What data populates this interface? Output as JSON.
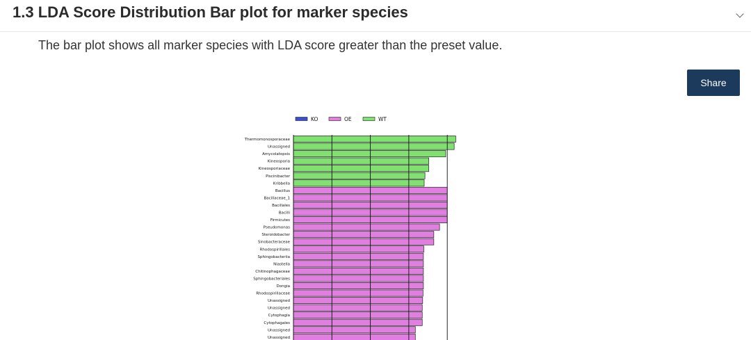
{
  "section": {
    "title": "1.3 LDA Score Distribution Bar plot for marker species",
    "description": "The bar plot shows all marker species with LDA score greater than the preset value."
  },
  "share_label": "Share",
  "chart_data": {
    "type": "bar",
    "orientation": "horizontal",
    "legend": {
      "position": "top",
      "items": [
        {
          "name": "KO",
          "color": "#3a4fd6"
        },
        {
          "name": "OE",
          "color": "#e07fe0"
        },
        {
          "name": "WT",
          "color": "#80e070"
        }
      ]
    },
    "colors": {
      "KO": "#3a4fd6",
      "OE": "#e07fe0",
      "WT": "#80e070"
    },
    "xlim": [
      0,
      5
    ],
    "grid": true,
    "bars": [
      {
        "label": "Thermomonosporaceae",
        "group": "WT",
        "value": 4.22
      },
      {
        "label": "Unassigned",
        "group": "WT",
        "value": 4.18
      },
      {
        "label": "Amycolatopsis",
        "group": "WT",
        "value": 3.96
      },
      {
        "label": "Kineosporia",
        "group": "WT",
        "value": 3.52
      },
      {
        "label": "Kineosporiaceae",
        "group": "WT",
        "value": 3.52
      },
      {
        "label": "Piscinibacter",
        "group": "WT",
        "value": 3.42
      },
      {
        "label": "Kribbella",
        "group": "WT",
        "value": 3.4
      },
      {
        "label": "Bacillus",
        "group": "OE",
        "value": 4.0
      },
      {
        "label": "Bacillaceae_1",
        "group": "OE",
        "value": 4.0
      },
      {
        "label": "Bacillales",
        "group": "OE",
        "value": 4.0
      },
      {
        "label": "Bacilli",
        "group": "OE",
        "value": 4.0
      },
      {
        "label": "Firmicutes",
        "group": "OE",
        "value": 4.0
      },
      {
        "label": "Pseudomonas",
        "group": "OE",
        "value": 3.8
      },
      {
        "label": "Steroidobacter",
        "group": "OE",
        "value": 3.65
      },
      {
        "label": "Sinobacteraceae",
        "group": "OE",
        "value": 3.65
      },
      {
        "label": "Rhodospirillales",
        "group": "OE",
        "value": 3.39
      },
      {
        "label": "Sphingobacteriia",
        "group": "OE",
        "value": 3.38
      },
      {
        "label": "Niastella",
        "group": "OE",
        "value": 3.38
      },
      {
        "label": "Chitinophagaceae",
        "group": "OE",
        "value": 3.38
      },
      {
        "label": "Sphingobacteriales",
        "group": "OE",
        "value": 3.38
      },
      {
        "label": "Dongia",
        "group": "OE",
        "value": 3.38
      },
      {
        "label": "Rhodospirillaceae",
        "group": "OE",
        "value": 3.37
      },
      {
        "label": "Unassigned",
        "group": "OE",
        "value": 3.36
      },
      {
        "label": "Unassigned",
        "group": "OE",
        "value": 3.35
      },
      {
        "label": "Cytophagia",
        "group": "OE",
        "value": 3.35
      },
      {
        "label": "Cytophagales",
        "group": "OE",
        "value": 3.35
      },
      {
        "label": "Unassigned",
        "group": "OE",
        "value": 3.17
      },
      {
        "label": "Unassigned",
        "group": "OE",
        "value": 3.17
      }
    ]
  }
}
